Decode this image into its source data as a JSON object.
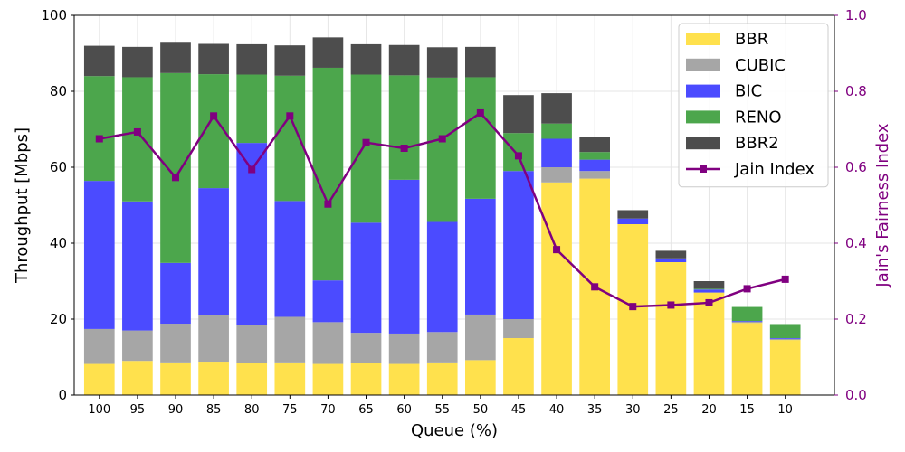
{
  "chart_data": {
    "type": "bar",
    "stacked": true,
    "xlabel": "Queue (%)",
    "ylabel": "Throughput [Mbps]",
    "y2label": "Jain's Fairness Index",
    "ylim": [
      0,
      100
    ],
    "y2lim": [
      0.0,
      1.0
    ],
    "yticks": [
      "0",
      "20",
      "40",
      "60",
      "80",
      "100"
    ],
    "y2ticks": [
      "0.0",
      "0.2",
      "0.4",
      "0.6",
      "0.8",
      "1.0"
    ],
    "grid": true,
    "legend_position": "top-right",
    "categories": [
      "100",
      "95",
      "90",
      "85",
      "80",
      "75",
      "70",
      "65",
      "60",
      "55",
      "50",
      "45",
      "40",
      "35",
      "30",
      "25",
      "20",
      "15",
      "10"
    ],
    "series": [
      {
        "name": "BBR",
        "color": "#ffe14d",
        "values": [
          8.2,
          9.0,
          8.6,
          8.8,
          8.4,
          8.6,
          8.2,
          8.4,
          8.2,
          8.6,
          9.2,
          15.0,
          56.0,
          57.0,
          45.0,
          35.0,
          27.0,
          19.0,
          14.5
        ]
      },
      {
        "name": "CUBIC",
        "color": "#a6a6a6",
        "values": [
          9.2,
          8.0,
          10.2,
          12.2,
          10.0,
          12.0,
          11.0,
          8.0,
          8.0,
          8.0,
          12.0,
          5.0,
          4.0,
          2.0,
          0.0,
          0.0,
          0.0,
          0.3,
          0.3
        ]
      },
      {
        "name": "BIC",
        "color": "#4b4bff",
        "values": [
          39.0,
          34.0,
          16.0,
          33.5,
          48.0,
          30.5,
          11.0,
          29.0,
          40.5,
          29.0,
          30.5,
          39.0,
          7.5,
          3.0,
          1.5,
          1.0,
          0.8,
          0.2,
          0.2
        ]
      },
      {
        "name": "RENO",
        "color": "#4ca64c",
        "values": [
          27.6,
          32.7,
          50.0,
          30.0,
          18.0,
          33.0,
          56.0,
          39.0,
          27.5,
          38.0,
          32.0,
          10.0,
          4.0,
          2.0,
          0.0,
          0.0,
          0.2,
          3.7,
          3.7
        ]
      },
      {
        "name": "BBR2",
        "color": "#4d4d4d",
        "values": [
          8.0,
          8.0,
          8.0,
          8.0,
          8.0,
          8.0,
          8.0,
          8.0,
          8.0,
          8.0,
          8.0,
          10.0,
          8.0,
          4.0,
          2.2,
          2.0,
          2.0,
          0.0,
          0.0
        ]
      }
    ],
    "line_series": {
      "name": "Jain Index",
      "color": "#800080",
      "axis": "right",
      "values": [
        0.675,
        0.693,
        0.573,
        0.735,
        0.594,
        0.735,
        0.503,
        0.665,
        0.65,
        0.675,
        0.743,
        0.63,
        0.383,
        0.285,
        0.233,
        0.237,
        0.243,
        0.28,
        0.305
      ]
    },
    "right_axis_color": "#800080"
  }
}
